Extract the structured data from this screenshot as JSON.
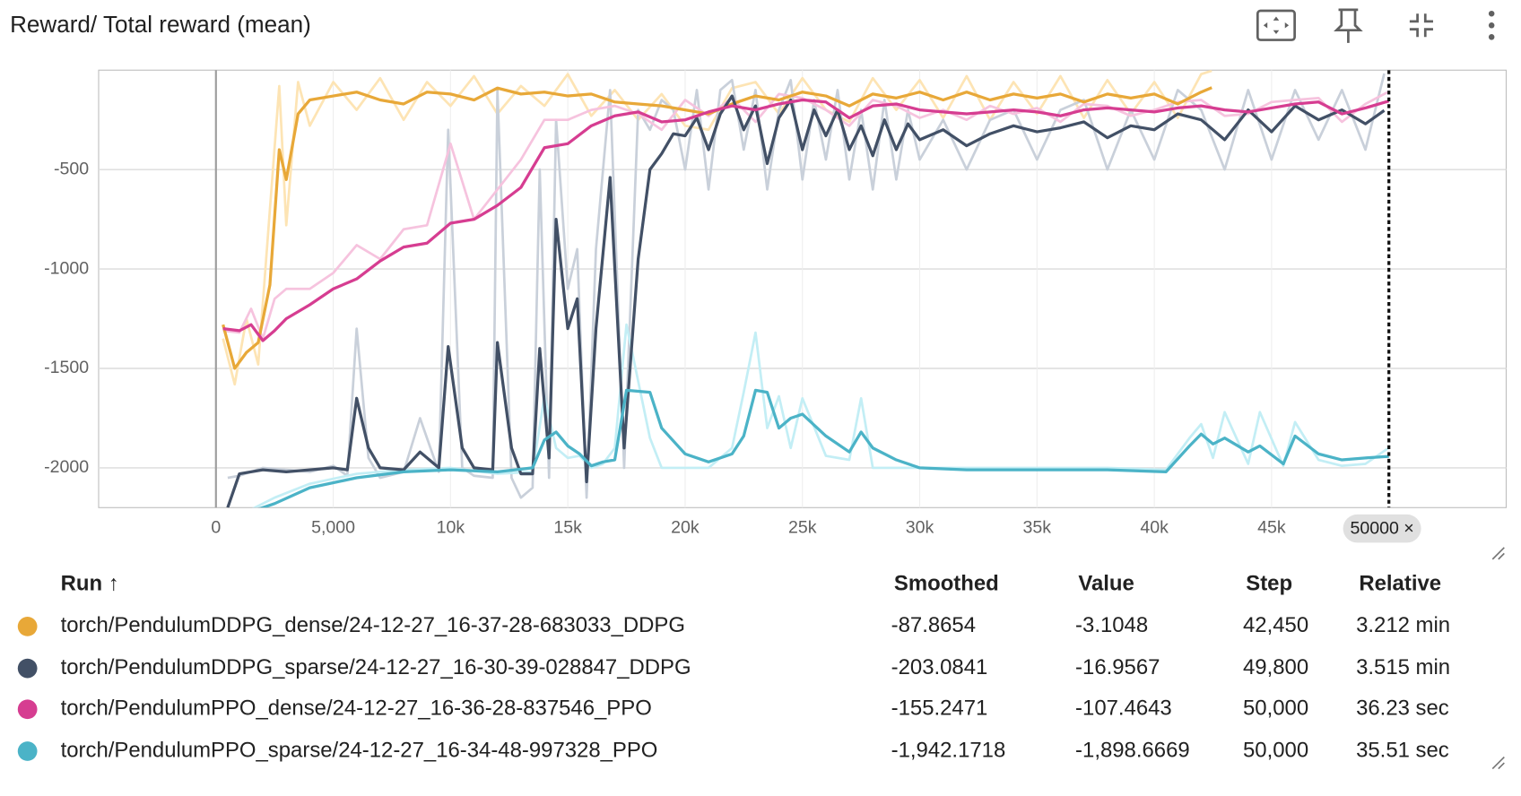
{
  "chart_data": {
    "type": "line",
    "title": "Reward/ Total reward (mean)",
    "xlim": [
      -5000,
      55000
    ],
    "ylim": [
      -2200,
      0
    ],
    "xticks": [
      0,
      {
        "value": 5000,
        "label": "5,000"
      },
      {
        "value": 10000,
        "label": "10k"
      },
      {
        "value": 15000,
        "label": "15k"
      },
      {
        "value": 20000,
        "label": "20k"
      },
      {
        "value": 25000,
        "label": "25k"
      },
      {
        "value": 30000,
        "label": "30k"
      },
      {
        "value": 35000,
        "label": "35k"
      },
      {
        "value": 40000,
        "label": "40k"
      },
      {
        "value": 45000,
        "label": "45k"
      }
    ],
    "yticks": [
      -2000,
      -1500,
      -1000,
      -500
    ],
    "grid": true,
    "cursor_step": 50000,
    "cursor_label": "50000 ×",
    "series": [
      {
        "name": "torch/PendulumDDPG_dense/24-12-27_16-37-28-683033_DDPG",
        "color": "#e8a838",
        "raw_color": "#fde4b4",
        "x": [
          300,
          800,
          1300,
          1800,
          2300,
          2700,
          3000,
          3500,
          4000,
          5000,
          6000,
          7000,
          8000,
          9000,
          10000,
          11000,
          12000,
          13000,
          14000,
          15000,
          16000,
          17000,
          18000,
          19000,
          20000,
          21000,
          22000,
          23000,
          24000,
          25000,
          26000,
          27000,
          28000,
          29000,
          30000,
          31000,
          32000,
          33000,
          34000,
          35000,
          36000,
          37000,
          38000,
          39000,
          40000,
          41000,
          42000,
          42450
        ],
        "values": [
          -1280,
          -1500,
          -1420,
          -1370,
          -1080,
          -400,
          -550,
          -220,
          -150,
          -130,
          -110,
          -150,
          -170,
          -110,
          -120,
          -150,
          -90,
          -120,
          -110,
          -130,
          -120,
          -160,
          -170,
          -180,
          -200,
          -220,
          -170,
          -130,
          -150,
          -110,
          -130,
          -180,
          -120,
          -140,
          -110,
          -150,
          -110,
          -150,
          -120,
          -140,
          -120,
          -160,
          -120,
          -140,
          -120,
          -170,
          -110,
          -87.8654
        ],
        "raw_values": [
          -1350,
          -1580,
          -1250,
          -1480,
          -700,
          -80,
          -780,
          -60,
          -280,
          -60,
          -200,
          -40,
          -250,
          -60,
          -180,
          -30,
          -220,
          -80,
          -180,
          -20,
          -230,
          -100,
          -250,
          -120,
          -280,
          -300,
          -90,
          -60,
          -220,
          -40,
          -200,
          -260,
          -40,
          -200,
          -50,
          -240,
          -30,
          -250,
          -60,
          -220,
          -30,
          -240,
          -50,
          -220,
          -60,
          -240,
          -20,
          -3.1048
        ]
      },
      {
        "name": "torch/PendulumDDPG_sparse/24-12-27_16-30-39-028847_DDPG",
        "color": "#425066",
        "raw_color": "#c9d0da",
        "x": [
          500,
          1000,
          2000,
          3000,
          4000,
          5000,
          5600,
          6000,
          6500,
          7000,
          8000,
          8700,
          9500,
          9900,
          10500,
          11000,
          11800,
          12000,
          12600,
          13000,
          13500,
          13800,
          14200,
          14500,
          15000,
          15400,
          15800,
          16200,
          16800,
          17400,
          18000,
          18500,
          19000,
          19500,
          20000,
          20500,
          21000,
          21500,
          22000,
          22500,
          23000,
          23500,
          24000,
          24500,
          25000,
          25500,
          26000,
          26500,
          27000,
          27500,
          28000,
          28500,
          29000,
          29500,
          30000,
          31000,
          32000,
          33000,
          34000,
          35000,
          36000,
          37000,
          38000,
          39000,
          40000,
          41000,
          42000,
          43000,
          44000,
          45000,
          46000,
          47000,
          48000,
          49000,
          49800
        ],
        "values": [
          -2200,
          -2030,
          -2010,
          -2020,
          -2010,
          -2000,
          -2010,
          -1650,
          -1900,
          -2000,
          -2010,
          -1920,
          -2000,
          -1390,
          -1900,
          -2000,
          -2010,
          -1370,
          -1900,
          -2030,
          -2030,
          -1400,
          -1950,
          -750,
          -1300,
          -1150,
          -2070,
          -1300,
          -540,
          -1900,
          -950,
          -500,
          -420,
          -320,
          -330,
          -240,
          -400,
          -220,
          -130,
          -300,
          -180,
          -470,
          -240,
          -150,
          -400,
          -200,
          -330,
          -200,
          -400,
          -280,
          -430,
          -250,
          -400,
          -270,
          -350,
          -300,
          -380,
          -320,
          -280,
          -310,
          -290,
          -260,
          -340,
          -280,
          -300,
          -220,
          -250,
          -350,
          -200,
          -310,
          -180,
          -250,
          -200,
          -270,
          -203.0841
        ],
        "raw_values": [
          -2050,
          -2040,
          -2000,
          -2010,
          -2020,
          -1990,
          -2040,
          -1300,
          -1950,
          -2050,
          -2020,
          -1750,
          -2020,
          -300,
          -2000,
          -2040,
          -2050,
          -100,
          -2050,
          -2150,
          -2100,
          -500,
          -2050,
          -250,
          -1100,
          -900,
          -2150,
          -900,
          -100,
          -2000,
          -200,
          -300,
          -150,
          -200,
          -500,
          -100,
          -600,
          -100,
          -50,
          -400,
          -100,
          -600,
          -200,
          -50,
          -550,
          -150,
          -450,
          -100,
          -550,
          -200,
          -600,
          -150,
          -550,
          -200,
          -450,
          -250,
          -500,
          -250,
          -200,
          -450,
          -200,
          -150,
          -500,
          -200,
          -450,
          -100,
          -200,
          -500,
          -100,
          -450,
          -100,
          -350,
          -100,
          -400,
          -16.9567
        ]
      },
      {
        "name": "torch/PendulumPPO_dense/24-12-27_16-36-28-837546_PPO",
        "color": "#d63d91",
        "raw_color": "#f6c3de",
        "x": [
          300,
          1000,
          1500,
          2000,
          2500,
          3000,
          4000,
          5000,
          6000,
          7000,
          8000,
          9000,
          10000,
          11000,
          12000,
          13000,
          14000,
          15000,
          16000,
          17000,
          18000,
          19000,
          20000,
          21000,
          22000,
          23000,
          24000,
          25000,
          26000,
          27000,
          28000,
          29000,
          30000,
          31000,
          32000,
          33000,
          34000,
          35000,
          36000,
          37000,
          38000,
          39000,
          40000,
          41000,
          42000,
          43000,
          44000,
          45000,
          46000,
          47000,
          48000,
          49000,
          50000
        ],
        "values": [
          -1300,
          -1310,
          -1280,
          -1360,
          -1310,
          -1250,
          -1180,
          -1100,
          -1050,
          -960,
          -890,
          -870,
          -770,
          -750,
          -680,
          -590,
          -390,
          -370,
          -280,
          -230,
          -210,
          -260,
          -250,
          -210,
          -180,
          -200,
          -170,
          -150,
          -160,
          -240,
          -180,
          -170,
          -200,
          -210,
          -220,
          -210,
          -200,
          -210,
          -230,
          -200,
          -190,
          -200,
          -210,
          -190,
          -180,
          -200,
          -210,
          -190,
          -170,
          -160,
          -220,
          -190,
          -155.2471
        ],
        "raw_values": [
          -1310,
          -1320,
          -1200,
          -1350,
          -1150,
          -1100,
          -1100,
          -1020,
          -880,
          -950,
          -800,
          -780,
          -370,
          -750,
          -600,
          -450,
          -250,
          -250,
          -200,
          -180,
          -220,
          -300,
          -150,
          -230,
          -140,
          -260,
          -120,
          -140,
          -200,
          -280,
          -150,
          -180,
          -240,
          -200,
          -250,
          -180,
          -220,
          -190,
          -260,
          -170,
          -180,
          -230,
          -200,
          -160,
          -150,
          -230,
          -220,
          -160,
          -150,
          -140,
          -260,
          -170,
          -107.4643
        ]
      },
      {
        "name": "torch/PendulumPPO_sparse/24-12-27_16-34-48-997328_PPO",
        "color": "#4bb3c7",
        "raw_color": "#c3eef5",
        "x": [
          1500,
          2500,
          4000,
          6000,
          8000,
          10000,
          12000,
          13500,
          14000,
          14500,
          15000,
          15500,
          16000,
          16500,
          17000,
          17500,
          18500,
          19000,
          20000,
          21000,
          22000,
          22500,
          23000,
          23500,
          24000,
          24500,
          25000,
          26000,
          27000,
          27500,
          28000,
          29000,
          30000,
          32000,
          35000,
          38000,
          40500,
          41500,
          42000,
          42500,
          43000,
          44000,
          44500,
          45500,
          46000,
          47000,
          48000,
          49000,
          50000
        ],
        "values": [
          -2220,
          -2180,
          -2100,
          -2050,
          -2020,
          -2010,
          -2020,
          -2000,
          -1860,
          -1820,
          -1890,
          -1930,
          -1990,
          -1970,
          -1960,
          -1610,
          -1620,
          -1800,
          -1930,
          -1970,
          -1930,
          -1840,
          -1610,
          -1620,
          -1800,
          -1750,
          -1730,
          -1840,
          -1920,
          -1820,
          -1900,
          -1960,
          -2000,
          -2010,
          -2010,
          -2010,
          -2020,
          -1890,
          -1830,
          -1880,
          -1850,
          -1920,
          -1890,
          -1980,
          -1840,
          -1930,
          -1960,
          -1950,
          -1942.1718
        ],
        "raw_values": [
          -2210,
          -2150,
          -2080,
          -2030,
          -2010,
          -2000,
          -2030,
          -2020,
          -1640,
          -1900,
          -1950,
          -1940,
          -2000,
          -1980,
          -1900,
          -1280,
          -1850,
          -2000,
          -2000,
          -2000,
          -1900,
          -1620,
          -1320,
          -1800,
          -1640,
          -1900,
          -1650,
          -1940,
          -1960,
          -1650,
          -2000,
          -2000,
          -2000,
          -2000,
          -2000,
          -2000,
          -2010,
          -1850,
          -1780,
          -1950,
          -1720,
          -1980,
          -1720,
          -1990,
          -1770,
          -1960,
          -1990,
          -1980,
          -1898.6669
        ]
      }
    ]
  },
  "run_table": {
    "columns": [
      "Run ↑",
      "Smoothed",
      "Value",
      "Step",
      "Relative"
    ],
    "rows": [
      [
        "-87.8654",
        "-3.1048",
        "42,450",
        "3.212 min"
      ],
      [
        "-203.0841",
        "-16.9567",
        "49,800",
        "3.515 min"
      ],
      [
        "-155.2471",
        "-107.4643",
        "50,000",
        "36.23 sec"
      ],
      [
        "-1,942.1718",
        "-1,898.6669",
        "50,000",
        "35.51 sec"
      ]
    ]
  }
}
